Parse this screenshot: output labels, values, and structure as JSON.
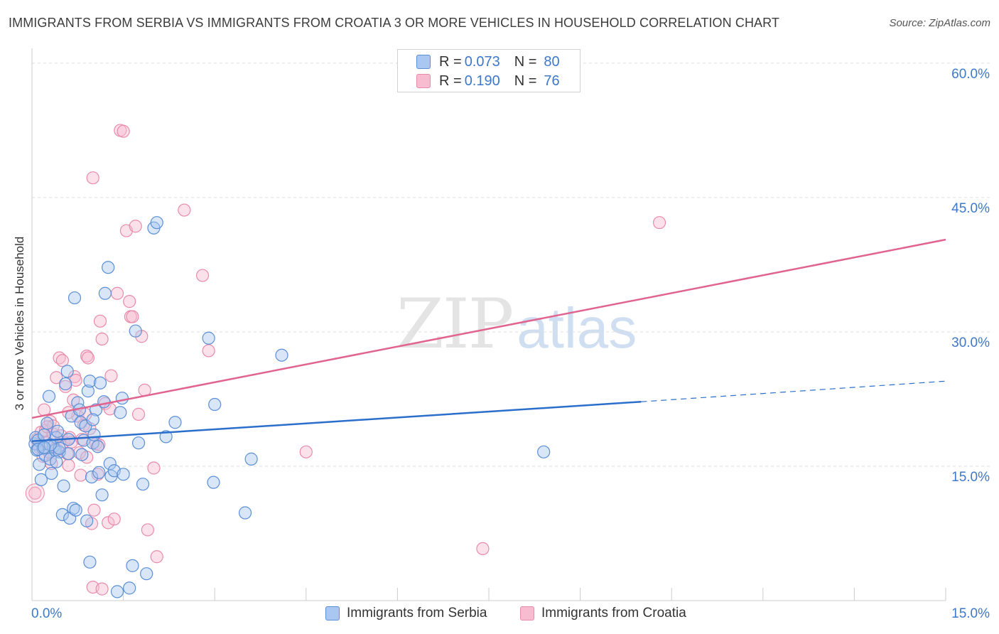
{
  "header": {
    "title": "IMMIGRANTS FROM SERBIA VS IMMIGRANTS FROM CROATIA 3 OR MORE VEHICLES IN HOUSEHOLD CORRELATION CHART",
    "source": "Source: ZipAtlas.com"
  },
  "watermark": {
    "zip": "ZIP",
    "atlas": "atlas"
  },
  "legend": {
    "row1": {
      "r_label": "R =",
      "r_value": "0.073",
      "n_label": "N =",
      "n_value": "80"
    },
    "row2": {
      "r_label": "R =",
      "r_value": "0.190",
      "n_label": "N =",
      "n_value": "76"
    }
  },
  "colors": {
    "serbia_fill": "#a9c7f0",
    "serbia_stroke": "#5b8fd6",
    "serbia_line": "#2c6ecb",
    "croatia_fill": "#f7bcd0",
    "croatia_stroke": "#e98aab",
    "croatia_line": "#e0648f",
    "tick_text": "#3d78c9",
    "grid": "#dddddd"
  },
  "chart_data": {
    "type": "scatter",
    "title": "IMMIGRANTS FROM SERBIA VS IMMIGRANTS FROM CROATIA 3 OR MORE VEHICLES IN HOUSEHOLD CORRELATION CHART",
    "xlabel": "",
    "ylabel": "3 or more Vehicles in Household",
    "xlim": [
      0,
      15
    ],
    "ylim": [
      0,
      61.5
    ],
    "x_tick_labels": [
      "0.0%",
      "15.0%"
    ],
    "y_ticks": [
      15,
      30,
      45,
      60
    ],
    "y_tick_labels": [
      "15.0%",
      "30.0%",
      "45.0%",
      "60.0%"
    ],
    "grid": true,
    "legend_position": "bottom-center",
    "series": [
      {
        "name": "Immigrants from Serbia",
        "r": 0.073,
        "n": 80,
        "trend": {
          "x0": 0,
          "y0": 17.8,
          "x_solid_end": 10.0,
          "y_solid_end": 22.2,
          "x1": 15.0,
          "y1": 24.5
        },
        "points": [
          [
            0.05,
            17.5
          ],
          [
            0.06,
            18.2
          ],
          [
            0.08,
            16.8
          ],
          [
            0.1,
            17.9
          ],
          [
            0.12,
            15.2
          ],
          [
            0.15,
            13.5
          ],
          [
            0.18,
            17.0
          ],
          [
            0.2,
            18.5
          ],
          [
            0.22,
            16.2
          ],
          [
            0.25,
            19.8
          ],
          [
            0.28,
            22.8
          ],
          [
            0.3,
            15.8
          ],
          [
            0.32,
            14.2
          ],
          [
            0.35,
            17.2
          ],
          [
            0.38,
            16.8
          ],
          [
            0.4,
            18.2
          ],
          [
            0.42,
            18.9
          ],
          [
            0.45,
            16.6
          ],
          [
            0.5,
            9.6
          ],
          [
            0.52,
            12.8
          ],
          [
            0.55,
            24.2
          ],
          [
            0.58,
            25.6
          ],
          [
            0.6,
            16.4
          ],
          [
            0.62,
            9.2
          ],
          [
            0.65,
            20.6
          ],
          [
            0.68,
            10.3
          ],
          [
            0.7,
            33.8
          ],
          [
            0.72,
            10.1
          ],
          [
            0.75,
            22.1
          ],
          [
            0.78,
            21.3
          ],
          [
            0.8,
            19.9
          ],
          [
            0.82,
            16.3
          ],
          [
            0.85,
            17.9
          ],
          [
            0.88,
            19.5
          ],
          [
            0.9,
            8.9
          ],
          [
            0.92,
            23.4
          ],
          [
            0.95,
            24.5
          ],
          [
            0.98,
            13.8
          ],
          [
            1.0,
            17.6
          ],
          [
            1.02,
            18.5
          ],
          [
            1.05,
            21.3
          ],
          [
            1.08,
            17.2
          ],
          [
            1.1,
            14.3
          ],
          [
            1.12,
            24.3
          ],
          [
            1.15,
            11.8
          ],
          [
            1.18,
            22.2
          ],
          [
            1.2,
            34.3
          ],
          [
            1.25,
            37.2
          ],
          [
            1.28,
            15.3
          ],
          [
            1.3,
            13.9
          ],
          [
            1.35,
            14.5
          ],
          [
            1.45,
            21.0
          ],
          [
            1.48,
            22.6
          ],
          [
            1.5,
            14.1
          ],
          [
            1.6,
            1.4
          ],
          [
            1.65,
            3.9
          ],
          [
            1.7,
            30.1
          ],
          [
            1.75,
            17.6
          ],
          [
            1.82,
            13.0
          ],
          [
            1.88,
            3.0
          ],
          [
            2.0,
            41.6
          ],
          [
            2.05,
            42.2
          ],
          [
            2.2,
            18.3
          ],
          [
            2.35,
            19.9
          ],
          [
            2.9,
            29.3
          ],
          [
            2.98,
            13.2
          ],
          [
            3.0,
            21.9
          ],
          [
            3.5,
            9.8
          ],
          [
            3.6,
            15.8
          ],
          [
            4.1,
            27.4
          ],
          [
            8.4,
            16.6
          ],
          [
            0.45,
            17.0
          ],
          [
            0.6,
            18.0
          ],
          [
            1.0,
            20.2
          ],
          [
            0.3,
            17.4
          ],
          [
            0.1,
            16.9
          ],
          [
            0.95,
            4.3
          ],
          [
            1.4,
            1.0
          ],
          [
            0.2,
            17.1
          ],
          [
            0.4,
            15.5
          ]
        ]
      },
      {
        "name": "Immigrants from Croatia",
        "r": 0.19,
        "n": 76,
        "trend": {
          "x0": 0,
          "y0": 20.4,
          "x1": 15.0,
          "y1": 40.3
        },
        "points": [
          [
            0.05,
            12.0
          ],
          [
            0.08,
            18.0
          ],
          [
            0.1,
            17.4
          ],
          [
            0.12,
            17.1
          ],
          [
            0.15,
            18.8
          ],
          [
            0.18,
            16.1
          ],
          [
            0.2,
            21.3
          ],
          [
            0.22,
            19.0
          ],
          [
            0.25,
            17.6
          ],
          [
            0.28,
            16.6
          ],
          [
            0.3,
            20.0
          ],
          [
            0.32,
            15.3
          ],
          [
            0.35,
            18.6
          ],
          [
            0.38,
            17.0
          ],
          [
            0.4,
            24.9
          ],
          [
            0.42,
            16.8
          ],
          [
            0.45,
            27.1
          ],
          [
            0.48,
            18.4
          ],
          [
            0.5,
            26.8
          ],
          [
            0.52,
            17.7
          ],
          [
            0.55,
            23.9
          ],
          [
            0.58,
            16.4
          ],
          [
            0.6,
            15.1
          ],
          [
            0.62,
            18.2
          ],
          [
            0.65,
            17.7
          ],
          [
            0.68,
            22.4
          ],
          [
            0.7,
            25.0
          ],
          [
            0.72,
            24.6
          ],
          [
            0.75,
            20.6
          ],
          [
            0.78,
            16.5
          ],
          [
            0.8,
            14.0
          ],
          [
            0.82,
            18.0
          ],
          [
            0.85,
            19.6
          ],
          [
            0.88,
            20.8
          ],
          [
            0.9,
            27.3
          ],
          [
            0.92,
            27.1
          ],
          [
            0.95,
            19.2
          ],
          [
            0.98,
            8.6
          ],
          [
            1.0,
            47.2
          ],
          [
            1.02,
            10.1
          ],
          [
            1.05,
            17.5
          ],
          [
            1.08,
            14.1
          ],
          [
            1.1,
            17.4
          ],
          [
            1.12,
            31.2
          ],
          [
            1.15,
            29.2
          ],
          [
            1.2,
            22.0
          ],
          [
            1.25,
            8.7
          ],
          [
            1.28,
            21.4
          ],
          [
            1.35,
            9.1
          ],
          [
            1.4,
            34.3
          ],
          [
            1.45,
            52.5
          ],
          [
            1.5,
            52.4
          ],
          [
            1.55,
            41.3
          ],
          [
            1.6,
            33.4
          ],
          [
            1.62,
            31.7
          ],
          [
            1.65,
            31.7
          ],
          [
            1.7,
            41.8
          ],
          [
            1.75,
            20.8
          ],
          [
            1.8,
            29.5
          ],
          [
            1.85,
            23.5
          ],
          [
            1.9,
            7.9
          ],
          [
            2.0,
            14.8
          ],
          [
            2.05,
            4.9
          ],
          [
            2.5,
            43.6
          ],
          [
            2.8,
            36.3
          ],
          [
            2.9,
            27.9
          ],
          [
            4.5,
            16.6
          ],
          [
            7.4,
            5.8
          ],
          [
            10.3,
            42.2
          ],
          [
            1.0,
            1.5
          ],
          [
            1.15,
            1.3
          ],
          [
            0.35,
            19.5
          ],
          [
            0.6,
            21.0
          ],
          [
            0.9,
            16.0
          ],
          [
            1.3,
            25.1
          ],
          [
            0.25,
            19.4
          ]
        ]
      }
    ]
  },
  "bottom_legend": {
    "serbia_label": "Immigrants from Serbia",
    "croatia_label": "Immigrants from Croatia"
  }
}
